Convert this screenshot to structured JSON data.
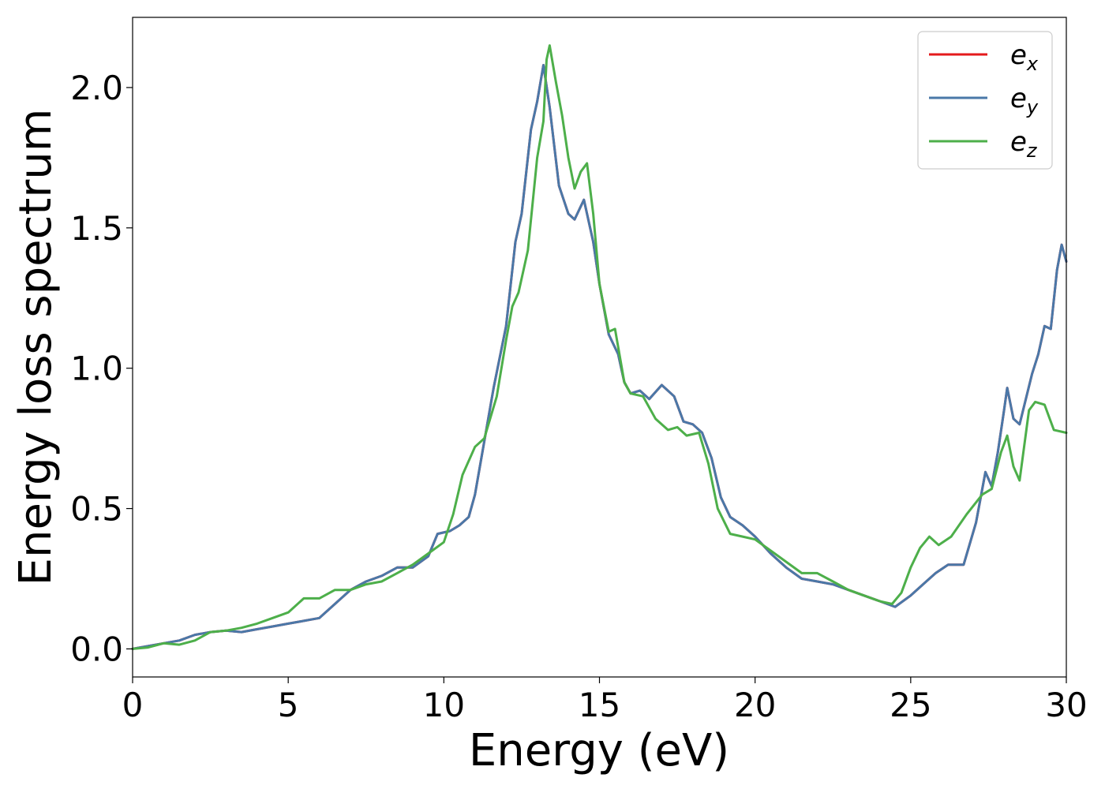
{
  "chart_data": {
    "type": "line",
    "title": "",
    "xlabel": "Energy (eV)",
    "ylabel": "Energy loss spectrum",
    "xlim": [
      0,
      30
    ],
    "ylim": [
      -0.1,
      2.25
    ],
    "xticks": [
      0,
      5,
      10,
      15,
      20,
      25,
      30
    ],
    "yticks": [
      0.0,
      0.5,
      1.0,
      1.5,
      2.0
    ],
    "xtick_labels": [
      "0",
      "5",
      "10",
      "15",
      "20",
      "25",
      "30"
    ],
    "ytick_labels": [
      "0.0",
      "0.5",
      "1.0",
      "1.5",
      "2.0"
    ],
    "grid": false,
    "legend_position": "top-right",
    "series": [
      {
        "name": "e_x",
        "legend_base": "e",
        "legend_sub": "x",
        "color": "#e41a1c",
        "points": [
          [
            0,
            0
          ],
          [
            0.5,
            0.01
          ],
          [
            1,
            0.02
          ],
          [
            1.5,
            0.03
          ],
          [
            2,
            0.05
          ],
          [
            2.5,
            0.06
          ],
          [
            3,
            0.065
          ],
          [
            3.5,
            0.06
          ],
          [
            4,
            0.07
          ],
          [
            4.5,
            0.08
          ],
          [
            5,
            0.09
          ],
          [
            5.5,
            0.1
          ],
          [
            6,
            0.11
          ],
          [
            6.5,
            0.16
          ],
          [
            7,
            0.21
          ],
          [
            7.5,
            0.24
          ],
          [
            8,
            0.26
          ],
          [
            8.5,
            0.29
          ],
          [
            9,
            0.29
          ],
          [
            9.5,
            0.33
          ],
          [
            9.8,
            0.41
          ],
          [
            10.2,
            0.42
          ],
          [
            10.5,
            0.44
          ],
          [
            10.8,
            0.47
          ],
          [
            11,
            0.55
          ],
          [
            11.3,
            0.74
          ],
          [
            11.6,
            0.93
          ],
          [
            12,
            1.15
          ],
          [
            12.3,
            1.45
          ],
          [
            12.5,
            1.55
          ],
          [
            12.8,
            1.85
          ],
          [
            13,
            1.95
          ],
          [
            13.2,
            2.08
          ],
          [
            13.4,
            1.93
          ],
          [
            13.7,
            1.65
          ],
          [
            14,
            1.55
          ],
          [
            14.2,
            1.53
          ],
          [
            14.5,
            1.6
          ],
          [
            14.8,
            1.45
          ],
          [
            15,
            1.3
          ],
          [
            15.3,
            1.12
          ],
          [
            15.6,
            1.05
          ],
          [
            15.8,
            0.95
          ],
          [
            16,
            0.91
          ],
          [
            16.3,
            0.92
          ],
          [
            16.6,
            0.89
          ],
          [
            17,
            0.94
          ],
          [
            17.4,
            0.9
          ],
          [
            17.7,
            0.81
          ],
          [
            18,
            0.8
          ],
          [
            18.3,
            0.77
          ],
          [
            18.6,
            0.68
          ],
          [
            18.9,
            0.54
          ],
          [
            19.2,
            0.47
          ],
          [
            19.6,
            0.44
          ],
          [
            20,
            0.4
          ],
          [
            20.5,
            0.34
          ],
          [
            21,
            0.29
          ],
          [
            21.5,
            0.25
          ],
          [
            22,
            0.24
          ],
          [
            22.5,
            0.23
          ],
          [
            23,
            0.21
          ],
          [
            23.5,
            0.19
          ],
          [
            24,
            0.17
          ],
          [
            24.5,
            0.15
          ],
          [
            25,
            0.19
          ],
          [
            25.5,
            0.24
          ],
          [
            25.8,
            0.27
          ],
          [
            26.2,
            0.3
          ],
          [
            26.7,
            0.3
          ],
          [
            27.1,
            0.45
          ],
          [
            27.4,
            0.63
          ],
          [
            27.6,
            0.58
          ],
          [
            27.8,
            0.7
          ],
          [
            28,
            0.85
          ],
          [
            28.1,
            0.93
          ],
          [
            28.3,
            0.82
          ],
          [
            28.5,
            0.8
          ],
          [
            28.9,
            0.98
          ],
          [
            29.1,
            1.05
          ],
          [
            29.3,
            1.15
          ],
          [
            29.5,
            1.14
          ],
          [
            29.7,
            1.35
          ],
          [
            29.85,
            1.44
          ],
          [
            30,
            1.38
          ]
        ]
      },
      {
        "name": "e_y",
        "legend_base": "e",
        "legend_sub": "y",
        "color": "#4a78a8",
        "points": [
          [
            0,
            0
          ],
          [
            0.5,
            0.01
          ],
          [
            1,
            0.02
          ],
          [
            1.5,
            0.03
          ],
          [
            2,
            0.05
          ],
          [
            2.5,
            0.06
          ],
          [
            3,
            0.065
          ],
          [
            3.5,
            0.06
          ],
          [
            4,
            0.07
          ],
          [
            4.5,
            0.08
          ],
          [
            5,
            0.09
          ],
          [
            5.5,
            0.1
          ],
          [
            6,
            0.11
          ],
          [
            6.5,
            0.16
          ],
          [
            7,
            0.21
          ],
          [
            7.5,
            0.24
          ],
          [
            8,
            0.26
          ],
          [
            8.5,
            0.29
          ],
          [
            9,
            0.29
          ],
          [
            9.5,
            0.33
          ],
          [
            9.8,
            0.41
          ],
          [
            10.2,
            0.42
          ],
          [
            10.5,
            0.44
          ],
          [
            10.8,
            0.47
          ],
          [
            11,
            0.55
          ],
          [
            11.3,
            0.74
          ],
          [
            11.6,
            0.93
          ],
          [
            12,
            1.15
          ],
          [
            12.3,
            1.45
          ],
          [
            12.5,
            1.55
          ],
          [
            12.8,
            1.85
          ],
          [
            13,
            1.95
          ],
          [
            13.2,
            2.08
          ],
          [
            13.4,
            1.93
          ],
          [
            13.7,
            1.65
          ],
          [
            14,
            1.55
          ],
          [
            14.2,
            1.53
          ],
          [
            14.5,
            1.6
          ],
          [
            14.8,
            1.45
          ],
          [
            15,
            1.3
          ],
          [
            15.3,
            1.12
          ],
          [
            15.6,
            1.05
          ],
          [
            15.8,
            0.95
          ],
          [
            16,
            0.91
          ],
          [
            16.3,
            0.92
          ],
          [
            16.6,
            0.89
          ],
          [
            17,
            0.94
          ],
          [
            17.4,
            0.9
          ],
          [
            17.7,
            0.81
          ],
          [
            18,
            0.8
          ],
          [
            18.3,
            0.77
          ],
          [
            18.6,
            0.68
          ],
          [
            18.9,
            0.54
          ],
          [
            19.2,
            0.47
          ],
          [
            19.6,
            0.44
          ],
          [
            20,
            0.4
          ],
          [
            20.5,
            0.34
          ],
          [
            21,
            0.29
          ],
          [
            21.5,
            0.25
          ],
          [
            22,
            0.24
          ],
          [
            22.5,
            0.23
          ],
          [
            23,
            0.21
          ],
          [
            23.5,
            0.19
          ],
          [
            24,
            0.17
          ],
          [
            24.5,
            0.15
          ],
          [
            25,
            0.19
          ],
          [
            25.5,
            0.24
          ],
          [
            25.8,
            0.27
          ],
          [
            26.2,
            0.3
          ],
          [
            26.7,
            0.3
          ],
          [
            27.1,
            0.45
          ],
          [
            27.4,
            0.63
          ],
          [
            27.6,
            0.58
          ],
          [
            27.8,
            0.7
          ],
          [
            28,
            0.85
          ],
          [
            28.1,
            0.93
          ],
          [
            28.3,
            0.82
          ],
          [
            28.5,
            0.8
          ],
          [
            28.9,
            0.98
          ],
          [
            29.1,
            1.05
          ],
          [
            29.3,
            1.15
          ],
          [
            29.5,
            1.14
          ],
          [
            29.7,
            1.35
          ],
          [
            29.85,
            1.44
          ],
          [
            30,
            1.38
          ]
        ]
      },
      {
        "name": "e_z",
        "legend_base": "e",
        "legend_sub": "z",
        "color": "#4daf4a",
        "points": [
          [
            0,
            0
          ],
          [
            0.5,
            0.005
          ],
          [
            1,
            0.02
          ],
          [
            1.5,
            0.015
          ],
          [
            2,
            0.03
          ],
          [
            2.5,
            0.06
          ],
          [
            3,
            0.065
          ],
          [
            3.5,
            0.075
          ],
          [
            4,
            0.09
          ],
          [
            4.5,
            0.11
          ],
          [
            5,
            0.13
          ],
          [
            5.5,
            0.18
          ],
          [
            6,
            0.18
          ],
          [
            6.5,
            0.21
          ],
          [
            7,
            0.21
          ],
          [
            7.5,
            0.23
          ],
          [
            8,
            0.24
          ],
          [
            8.5,
            0.27
          ],
          [
            9,
            0.3
          ],
          [
            9.5,
            0.34
          ],
          [
            10,
            0.38
          ],
          [
            10.3,
            0.48
          ],
          [
            10.6,
            0.62
          ],
          [
            11,
            0.72
          ],
          [
            11.3,
            0.75
          ],
          [
            11.7,
            0.9
          ],
          [
            12,
            1.1
          ],
          [
            12.2,
            1.22
          ],
          [
            12.4,
            1.27
          ],
          [
            12.7,
            1.42
          ],
          [
            13,
            1.75
          ],
          [
            13.2,
            1.88
          ],
          [
            13.3,
            2.1
          ],
          [
            13.4,
            2.15
          ],
          [
            13.6,
            2.02
          ],
          [
            13.8,
            1.9
          ],
          [
            14,
            1.75
          ],
          [
            14.2,
            1.64
          ],
          [
            14.4,
            1.7
          ],
          [
            14.6,
            1.73
          ],
          [
            14.8,
            1.55
          ],
          [
            15,
            1.3
          ],
          [
            15.3,
            1.13
          ],
          [
            15.5,
            1.14
          ],
          [
            15.8,
            0.95
          ],
          [
            16,
            0.91
          ],
          [
            16.4,
            0.9
          ],
          [
            16.8,
            0.82
          ],
          [
            17.2,
            0.78
          ],
          [
            17.5,
            0.79
          ],
          [
            17.8,
            0.76
          ],
          [
            18.2,
            0.77
          ],
          [
            18.5,
            0.66
          ],
          [
            18.8,
            0.5
          ],
          [
            19.2,
            0.41
          ],
          [
            19.6,
            0.4
          ],
          [
            20,
            0.39
          ],
          [
            20.5,
            0.35
          ],
          [
            21,
            0.31
          ],
          [
            21.5,
            0.27
          ],
          [
            22,
            0.27
          ],
          [
            22.5,
            0.24
          ],
          [
            23,
            0.21
          ],
          [
            23.5,
            0.19
          ],
          [
            24,
            0.17
          ],
          [
            24.4,
            0.16
          ],
          [
            24.7,
            0.2
          ],
          [
            25,
            0.29
          ],
          [
            25.3,
            0.36
          ],
          [
            25.6,
            0.4
          ],
          [
            25.9,
            0.37
          ],
          [
            26.3,
            0.4
          ],
          [
            26.8,
            0.48
          ],
          [
            27.3,
            0.55
          ],
          [
            27.6,
            0.57
          ],
          [
            27.9,
            0.7
          ],
          [
            28.1,
            0.76
          ],
          [
            28.3,
            0.65
          ],
          [
            28.5,
            0.6
          ],
          [
            28.8,
            0.85
          ],
          [
            29,
            0.88
          ],
          [
            29.3,
            0.87
          ],
          [
            29.6,
            0.78
          ],
          [
            30,
            0.77
          ]
        ]
      }
    ]
  }
}
